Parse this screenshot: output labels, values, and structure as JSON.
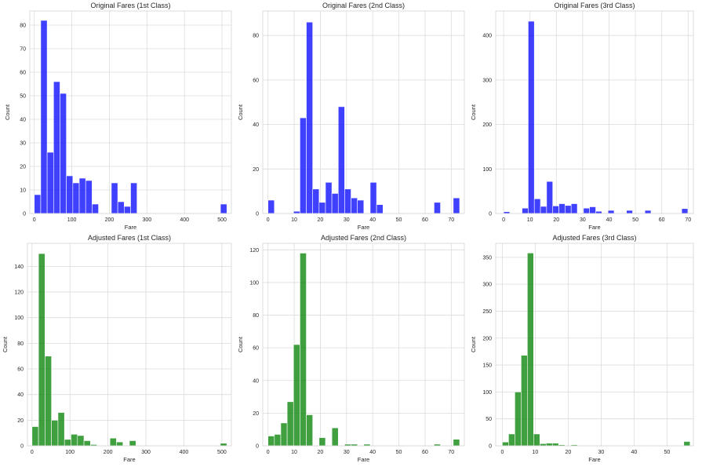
{
  "chart_data": [
    {
      "type": "bar",
      "title": "Original Fares (1st Class)",
      "xlabel": "Fare",
      "ylabel": "Count",
      "color": "#0000ff",
      "xlim": [
        -12,
        525
      ],
      "ylim": [
        0,
        86
      ],
      "xticks": [
        0,
        100,
        200,
        300,
        400,
        500
      ],
      "yticks": [
        0,
        10,
        20,
        30,
        40,
        50,
        60,
        70,
        80
      ],
      "bin_start": 0,
      "bin_width": 17.1,
      "values": [
        8,
        82,
        26,
        56,
        51,
        16,
        13,
        15,
        14,
        4,
        0,
        0,
        13,
        5,
        3,
        13,
        0,
        0,
        0,
        0,
        0,
        0,
        0,
        0,
        0,
        0,
        0,
        0,
        0,
        4
      ]
    },
    {
      "type": "bar",
      "title": "Original Fares (2nd Class)",
      "xlabel": "Fare",
      "ylabel": "Count",
      "color": "#0000ff",
      "xlim": [
        -2,
        75
      ],
      "ylim": [
        0,
        91
      ],
      "xticks": [
        0,
        10,
        20,
        30,
        40,
        50,
        60,
        70
      ],
      "yticks": [
        0,
        20,
        40,
        60,
        80
      ],
      "bin_start": 0,
      "bin_width": 2.44,
      "values": [
        6,
        0,
        0,
        0,
        1,
        43,
        86,
        11,
        5,
        14,
        9,
        48,
        11,
        7,
        6,
        0,
        14,
        4,
        0,
        0,
        0,
        0,
        0,
        0,
        0,
        0,
        5,
        0,
        0,
        7
      ]
    },
    {
      "type": "bar",
      "title": "Original Fares (3rd Class)",
      "xlabel": "Fare",
      "ylabel": "Count",
      "color": "#0000ff",
      "xlim": [
        -3,
        72
      ],
      "ylim": [
        0,
        455
      ],
      "xticks": [
        0,
        10,
        20,
        30,
        40,
        50,
        60,
        70
      ],
      "yticks": [
        0,
        100,
        200,
        300,
        400
      ],
      "bin_start": 0,
      "bin_width": 2.33,
      "values": [
        4,
        0,
        0,
        12,
        432,
        33,
        16,
        72,
        17,
        22,
        18,
        22,
        0,
        12,
        15,
        5,
        0,
        7,
        0,
        0,
        7,
        0,
        0,
        7,
        0,
        0,
        0,
        0,
        0,
        11
      ]
    },
    {
      "type": "bar",
      "title": "Adjusted Fares (1st Class)",
      "xlabel": "Fare",
      "ylabel": "Count",
      "color": "#008000",
      "xlim": [
        -12,
        525
      ],
      "ylim": [
        0,
        158
      ],
      "xticks": [
        0,
        100,
        200,
        300,
        400,
        500
      ],
      "yticks": [
        0,
        20,
        40,
        60,
        80,
        100,
        120,
        140
      ],
      "bin_start": 0,
      "bin_width": 17.1,
      "values": [
        15,
        150,
        70,
        20,
        26,
        5,
        9,
        8,
        4,
        1,
        0,
        0,
        6,
        3,
        0,
        4,
        0,
        0,
        0,
        0,
        0,
        0,
        0,
        0,
        0,
        0,
        0,
        0,
        0,
        2
      ]
    },
    {
      "type": "bar",
      "title": "Adjusted Fares (2nd Class)",
      "xlabel": "Fare",
      "ylabel": "Count",
      "color": "#008000",
      "xlim": [
        -2,
        75
      ],
      "ylim": [
        0,
        124
      ],
      "xticks": [
        0,
        10,
        20,
        30,
        40,
        50,
        60,
        70
      ],
      "yticks": [
        0,
        20,
        40,
        60,
        80,
        100,
        120
      ],
      "bin_start": 0,
      "bin_width": 2.44,
      "values": [
        6,
        7,
        14,
        27,
        62,
        118,
        19,
        0,
        5,
        0,
        11,
        0,
        1,
        1,
        0,
        1,
        0,
        0,
        0,
        0,
        0,
        0,
        0,
        0,
        0,
        0,
        1,
        0,
        0,
        4
      ]
    },
    {
      "type": "bar",
      "title": "Adjusted Fares (3rd Class)",
      "xlabel": "Fare",
      "ylabel": "Count",
      "color": "#008000",
      "xlim": [
        -2,
        58
      ],
      "ylim": [
        0,
        376
      ],
      "xticks": [
        0,
        10,
        20,
        30,
        40,
        50
      ],
      "yticks": [
        0,
        50,
        100,
        150,
        200,
        250,
        300,
        350
      ],
      "bin_start": 0,
      "bin_width": 1.9,
      "values": [
        7,
        22,
        100,
        168,
        358,
        22,
        4,
        5,
        5,
        2,
        0,
        2,
        1,
        0,
        0,
        0,
        0,
        0,
        0,
        0,
        0,
        0,
        0,
        1,
        0,
        0,
        0,
        0,
        0,
        8
      ]
    }
  ]
}
